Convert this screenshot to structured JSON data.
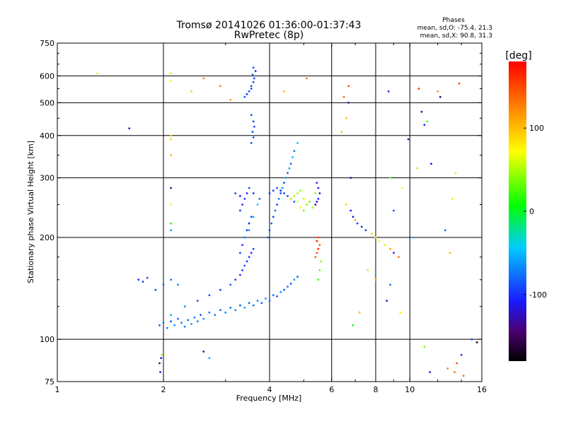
{
  "chart_data": {
    "type": "scatter",
    "title": "Tromsø 20141026 01:36:00-01:37:43",
    "subtitle": "RwPretec (8p)",
    "xlabel": "Frequency [MHz]",
    "ylabel": "Stationary phase Virtual Height [km]",
    "x_scale": "log",
    "y_scale": "log",
    "xlim": [
      1,
      16
    ],
    "ylim": [
      75,
      750
    ],
    "x_ticks": [
      1,
      2,
      4,
      6,
      8,
      10,
      16
    ],
    "y_ticks": [
      75,
      100,
      200,
      300,
      400,
      500,
      600,
      750
    ],
    "x_tick_labels": [
      "1",
      "2",
      "4",
      "6",
      "8",
      "10",
      "16"
    ],
    "y_tick_labels": [
      "75",
      "100",
      "200",
      "300",
      "400",
      "500",
      "600",
      "750"
    ],
    "grid": true,
    "phases_legend": {
      "title": "Phases",
      "line_o": "mean, sd,O: -75.4, 21.3",
      "line_x": "mean, sd,X: 90.8, 31.3"
    },
    "colorbar": {
      "label": "[deg]",
      "range": [
        -180,
        180
      ],
      "tick_values": [
        100,
        0,
        -100
      ],
      "tick_labels": [
        "100",
        "0",
        "-100"
      ]
    },
    "series": [
      {
        "values_format": "[frequency MHz, virtual height km, phase deg]",
        "points": [
          [
            1.95,
            110,
            -80
          ],
          [
            2.0,
            112,
            -75
          ],
          [
            2.05,
            108,
            -70
          ],
          [
            2.1,
            113,
            -85
          ],
          [
            2.15,
            110,
            -60
          ],
          [
            2.2,
            115,
            -78
          ],
          [
            2.25,
            112,
            -72
          ],
          [
            2.3,
            109,
            -66
          ],
          [
            2.35,
            114,
            -80
          ],
          [
            2.4,
            111,
            -58
          ],
          [
            2.45,
            116,
            -74
          ],
          [
            2.5,
            113,
            -68
          ],
          [
            2.55,
            118,
            -82
          ],
          [
            2.6,
            115,
            -62
          ],
          [
            2.7,
            120,
            -76
          ],
          [
            2.8,
            118,
            -70
          ],
          [
            2.9,
            122,
            -84
          ],
          [
            3.0,
            120,
            -64
          ],
          [
            3.1,
            124,
            -78
          ],
          [
            3.2,
            122,
            -72
          ],
          [
            3.3,
            126,
            -86
          ],
          [
            3.4,
            124,
            -60
          ],
          [
            3.5,
            128,
            -80
          ],
          [
            3.6,
            126,
            -74
          ],
          [
            3.7,
            130,
            -68
          ],
          [
            3.8,
            128,
            -82
          ],
          [
            3.9,
            132,
            -62
          ],
          [
            4.0,
            130,
            -76
          ],
          [
            4.1,
            135,
            -70
          ],
          [
            4.2,
            134,
            -84
          ],
          [
            4.3,
            138,
            -64
          ],
          [
            4.4,
            140,
            -78
          ],
          [
            4.5,
            143,
            -72
          ],
          [
            4.6,
            146,
            -86
          ],
          [
            4.7,
            150,
            -60
          ],
          [
            4.8,
            153,
            -80
          ],
          [
            2.1,
            118,
            -55
          ],
          [
            2.3,
            125,
            -60
          ],
          [
            2.5,
            130,
            -90
          ],
          [
            2.7,
            135,
            -85
          ],
          [
            2.9,
            140,
            -95
          ],
          [
            3.1,
            145,
            -88
          ],
          [
            3.2,
            150,
            -92
          ],
          [
            3.3,
            155,
            -100
          ],
          [
            3.35,
            160,
            -96
          ],
          [
            3.4,
            165,
            -90
          ],
          [
            3.45,
            170,
            -98
          ],
          [
            3.5,
            175,
            -94
          ],
          [
            3.55,
            180,
            -102
          ],
          [
            3.6,
            185,
            -88
          ],
          [
            3.3,
            180,
            -95
          ],
          [
            3.35,
            190,
            -100
          ],
          [
            3.4,
            200,
            -92
          ],
          [
            3.45,
            210,
            -98
          ],
          [
            3.5,
            220,
            -104
          ],
          [
            3.55,
            230,
            -90
          ],
          [
            3.3,
            240,
            -96
          ],
          [
            3.35,
            250,
            -100
          ],
          [
            3.4,
            260,
            -94
          ],
          [
            3.45,
            270,
            -102
          ],
          [
            3.5,
            280,
            -88
          ],
          [
            3.3,
            265,
            -110
          ],
          [
            3.6,
            270,
            -100
          ],
          [
            3.2,
            270,
            -92
          ],
          [
            3.4,
            200,
            -70
          ],
          [
            3.5,
            210,
            -60
          ],
          [
            3.6,
            230,
            -50
          ],
          [
            3.7,
            250,
            -45
          ],
          [
            3.75,
            260,
            -80
          ],
          [
            3.95,
            200,
            -85
          ],
          [
            4.0,
            210,
            -90
          ],
          [
            4.05,
            220,
            -80
          ],
          [
            4.1,
            230,
            -95
          ],
          [
            4.15,
            240,
            -75
          ],
          [
            4.2,
            250,
            -88
          ],
          [
            4.25,
            260,
            -70
          ],
          [
            4.3,
            270,
            -92
          ],
          [
            4.35,
            280,
            -65
          ],
          [
            4.4,
            290,
            -86
          ],
          [
            4.45,
            300,
            -60
          ],
          [
            4.5,
            310,
            -82
          ],
          [
            4.55,
            320,
            -55
          ],
          [
            4.6,
            330,
            -78
          ],
          [
            4.65,
            345,
            -50
          ],
          [
            4.7,
            360,
            -74
          ],
          [
            4.8,
            380,
            -45
          ],
          [
            4.0,
            270,
            -100
          ],
          [
            4.1,
            275,
            -95
          ],
          [
            4.2,
            280,
            -90
          ],
          [
            4.3,
            275,
            -100
          ],
          [
            4.4,
            270,
            -95
          ],
          [
            4.5,
            265,
            -90
          ],
          [
            4.6,
            260,
            -105
          ],
          [
            4.7,
            255,
            -85
          ],
          [
            4.6,
            260,
            60
          ],
          [
            4.7,
            265,
            55
          ],
          [
            4.8,
            270,
            50
          ],
          [
            4.9,
            275,
            45
          ],
          [
            5.0,
            260,
            60
          ],
          [
            5.1,
            250,
            40
          ],
          [
            5.2,
            255,
            30
          ],
          [
            5.0,
            240,
            35
          ],
          [
            4.9,
            245,
            70
          ],
          [
            4.8,
            255,
            65
          ],
          [
            5.3,
            245,
            50
          ],
          [
            5.4,
            270,
            45
          ],
          [
            5.4,
            175,
            140
          ],
          [
            5.45,
            180,
            150
          ],
          [
            5.5,
            185,
            160
          ],
          [
            5.55,
            190,
            145
          ],
          [
            5.5,
            200,
            155
          ],
          [
            5.45,
            195,
            165
          ],
          [
            5.5,
            150,
            20
          ],
          [
            5.55,
            160,
            30
          ],
          [
            5.6,
            170,
            40
          ],
          [
            5.4,
            250,
            -130
          ],
          [
            5.45,
            255,
            -120
          ],
          [
            5.5,
            260,
            -110
          ],
          [
            5.55,
            270,
            -125
          ],
          [
            5.5,
            280,
            -115
          ],
          [
            5.45,
            290,
            -100
          ],
          [
            3.55,
            560,
            -90
          ],
          [
            3.6,
            575,
            -85
          ],
          [
            3.62,
            590,
            -95
          ],
          [
            3.58,
            605,
            -80
          ],
          [
            3.65,
            620,
            -100
          ],
          [
            3.6,
            635,
            -88
          ],
          [
            3.55,
            550,
            -92
          ],
          [
            3.5,
            540,
            -86
          ],
          [
            3.45,
            530,
            -96
          ],
          [
            3.4,
            520,
            -84
          ],
          [
            3.55,
            380,
            -90
          ],
          [
            3.6,
            395,
            -86
          ],
          [
            3.58,
            410,
            -92
          ],
          [
            3.62,
            425,
            -88
          ],
          [
            3.6,
            440,
            -94
          ],
          [
            3.55,
            460,
            -84
          ],
          [
            1.7,
            150,
            -100
          ],
          [
            1.75,
            148,
            -95
          ],
          [
            1.8,
            152,
            -90
          ],
          [
            1.9,
            140,
            -85
          ],
          [
            2.0,
            145,
            -80
          ],
          [
            2.1,
            150,
            -75
          ],
          [
            2.2,
            145,
            -70
          ],
          [
            1.95,
            85,
            -130
          ],
          [
            1.96,
            80,
            -120
          ],
          [
            1.97,
            88,
            -110
          ],
          [
            1.98,
            90,
            50
          ],
          [
            2.6,
            92,
            -140
          ],
          [
            2.7,
            88,
            -50
          ],
          [
            1.3,
            610,
            60
          ],
          [
            1.6,
            420,
            -120
          ],
          [
            2.1,
            610,
            90
          ],
          [
            2.1,
            580,
            70
          ],
          [
            2.1,
            400,
            100
          ],
          [
            2.1,
            390,
            90
          ],
          [
            2.1,
            280,
            -140
          ],
          [
            2.1,
            250,
            80
          ],
          [
            2.1,
            220,
            20
          ],
          [
            2.1,
            210,
            -60
          ],
          [
            2.1,
            350,
            110
          ],
          [
            2.4,
            540,
            90
          ],
          [
            2.6,
            590,
            130
          ],
          [
            2.9,
            560,
            130
          ],
          [
            3.1,
            510,
            110
          ],
          [
            4.4,
            540,
            100
          ],
          [
            5.1,
            590,
            130
          ],
          [
            6.7,
            560,
            150
          ],
          [
            6.5,
            520,
            130
          ],
          [
            6.7,
            500,
            -130
          ],
          [
            6.6,
            450,
            100
          ],
          [
            6.4,
            410,
            40
          ],
          [
            6.8,
            300,
            -130
          ],
          [
            6.6,
            250,
            90
          ],
          [
            6.8,
            240,
            -110
          ],
          [
            6.9,
            230,
            -120
          ],
          [
            7.0,
            225,
            110
          ],
          [
            7.1,
            220,
            -90
          ],
          [
            7.3,
            215,
            -100
          ],
          [
            7.5,
            210,
            -95
          ],
          [
            7.8,
            205,
            90
          ],
          [
            8.0,
            200,
            80
          ],
          [
            8.2,
            195,
            70
          ],
          [
            8.5,
            190,
            60
          ],
          [
            8.8,
            185,
            110
          ],
          [
            9.0,
            180,
            -100
          ],
          [
            9.3,
            175,
            130
          ],
          [
            7.6,
            160,
            90
          ],
          [
            8.0,
            150,
            110
          ],
          [
            8.8,
            145,
            -80
          ],
          [
            8.6,
            130,
            -120
          ],
          [
            9.4,
            120,
            80
          ],
          [
            6.9,
            110,
            10
          ],
          [
            7.2,
            120,
            100
          ],
          [
            8.7,
            540,
            -100
          ],
          [
            8.8,
            300,
            40
          ],
          [
            9.9,
            390,
            -130
          ],
          [
            10.6,
            550,
            160
          ],
          [
            10.8,
            470,
            -120
          ],
          [
            11.0,
            430,
            -100
          ],
          [
            11.2,
            440,
            30
          ],
          [
            11.5,
            330,
            -120
          ],
          [
            12.0,
            540,
            120
          ],
          [
            12.2,
            520,
            -140
          ],
          [
            13.5,
            310,
            60
          ],
          [
            13.2,
            260,
            80
          ],
          [
            13.8,
            570,
            150
          ],
          [
            12.6,
            210,
            -80
          ],
          [
            13.0,
            180,
            100
          ],
          [
            10.2,
            200,
            -60
          ],
          [
            9.0,
            240,
            -90
          ],
          [
            9.5,
            280,
            70
          ],
          [
            10.5,
            320,
            90
          ],
          [
            11.0,
            95,
            40
          ],
          [
            13.6,
            85,
            150
          ],
          [
            13.4,
            80,
            130
          ],
          [
            14.0,
            90,
            -100
          ],
          [
            11.4,
            80,
            -120
          ],
          [
            12.8,
            82,
            120
          ],
          [
            14.2,
            78,
            130
          ],
          [
            15.5,
            98,
            -170
          ],
          [
            15.0,
            100,
            -90
          ]
        ]
      }
    ]
  }
}
